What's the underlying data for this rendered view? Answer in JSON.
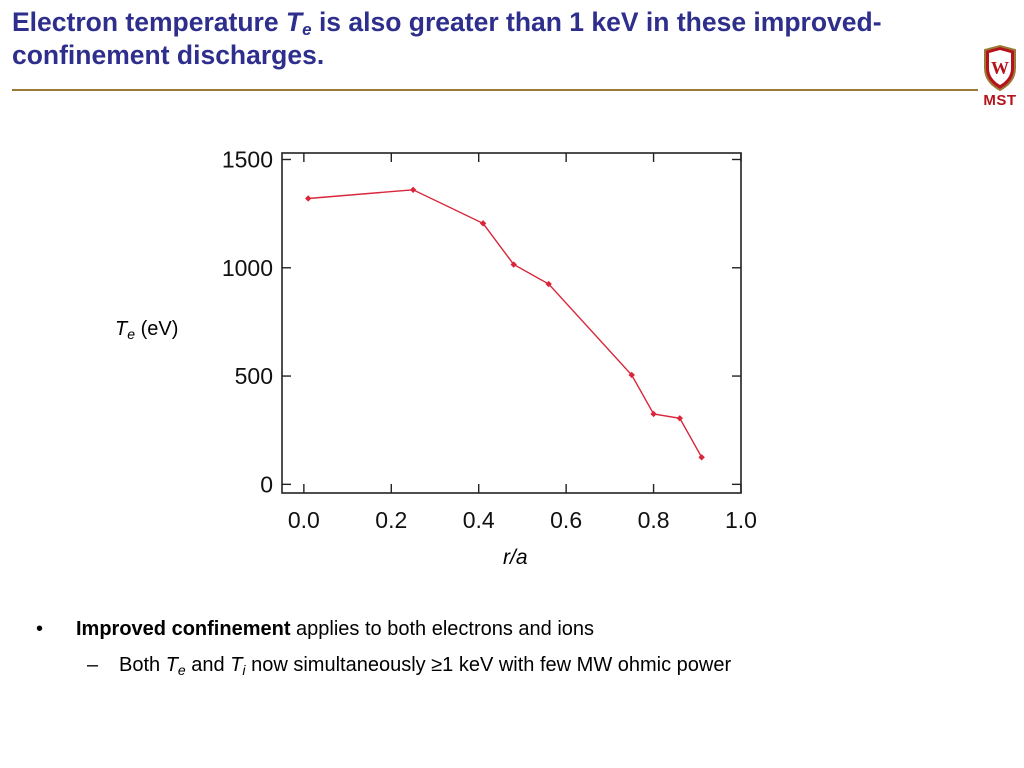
{
  "slide": {
    "title_part1": "Electron temperature ",
    "title_T": "T",
    "title_e": "e",
    "title_part2": " is also greater than 1 keV in these improved-confinement discharges.",
    "logo_text": "MST",
    "logo_icon": "uw-crest-icon"
  },
  "colors": {
    "title": "#2e2e8c",
    "rule": "#9a7a35",
    "series": "#d9263a",
    "logo": "#b5121b"
  },
  "chart_data": {
    "type": "line",
    "ylabel_T": "T",
    "ylabel_sub": "e",
    "ylabel_unit": " (eV)",
    "xlabel": "r/a",
    "xlim": [
      -0.05,
      1.0
    ],
    "ylim": [
      -40,
      1530
    ],
    "xticks": [
      0.0,
      0.2,
      0.4,
      0.6,
      0.8,
      1.0
    ],
    "xtick_labels": [
      "0.0",
      "0.2",
      "0.4",
      "0.6",
      "0.8",
      "1.0"
    ],
    "yticks": [
      0,
      500,
      1000,
      1500
    ],
    "ytick_labels": [
      "0",
      "500",
      "1000",
      "1500"
    ],
    "grid": false,
    "series": [
      {
        "x": [
          0.01,
          0.25,
          0.41,
          0.48,
          0.56,
          0.75,
          0.8,
          0.86,
          0.91
        ],
        "y": [
          1320,
          1360,
          1205,
          1015,
          925,
          505,
          325,
          305,
          125
        ]
      }
    ]
  },
  "bullets": {
    "marker1": "•",
    "item1_bold": "Improved confinement",
    "item1_rest": " applies to both electrons and ions",
    "marker2": "–",
    "item2_a": "Both ",
    "item2_T1": "T",
    "item2_e": "e",
    "item2_and": " and ",
    "item2_T2": "T",
    "item2_i": "i",
    "item2_rest": " now simultaneously ≥1 keV with few MW ohmic power"
  }
}
